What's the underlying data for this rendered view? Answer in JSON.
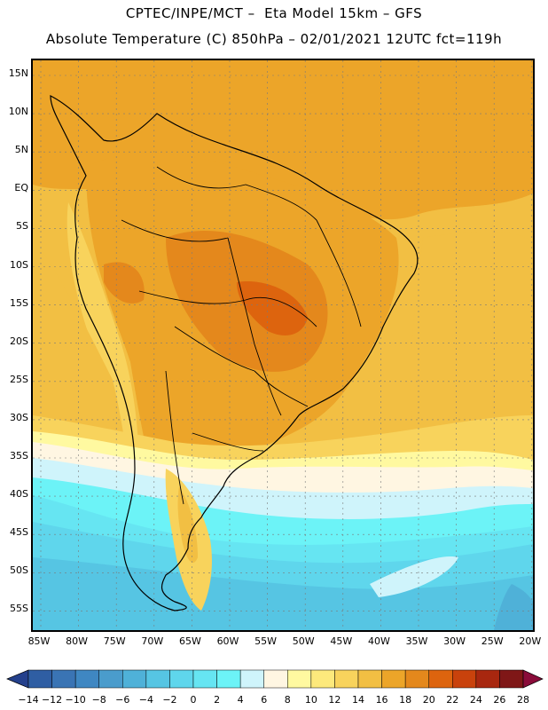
{
  "header": {
    "title_line1": "CPTEC/INPE/MCT –  Eta Model 15km – GFS",
    "title_line2": "Absolute Temperature (C) 850hPa – 02/01/2021 12UTC fct=119h"
  },
  "map": {
    "region": "South America",
    "lat_labels": [
      "15N",
      "10N",
      "5N",
      "EQ",
      "5S",
      "10S",
      "15S",
      "20S",
      "25S",
      "30S",
      "35S",
      "40S",
      "45S",
      "50S",
      "55S"
    ],
    "lon_labels": [
      "85W",
      "80W",
      "75W",
      "70W",
      "65W",
      "60W",
      "55W",
      "50W",
      "45W",
      "40W",
      "35W",
      "30W",
      "25W",
      "20W"
    ]
  },
  "colorbar": {
    "labels": [
      "-14",
      "-12",
      "-10",
      "-8",
      "-6",
      "-4",
      "-2",
      "0",
      "2",
      "4",
      "6",
      "8",
      "10",
      "12",
      "14",
      "16",
      "18",
      "20",
      "22",
      "24",
      "26",
      "28"
    ],
    "colors": [
      "#24408c",
      "#2f5ea3",
      "#3a74b4",
      "#3f87c2",
      "#4a9ccc",
      "#4fb1d8",
      "#56c5e3",
      "#5fd6ec",
      "#66e5f2",
      "#6cf3f7",
      "#cff4fb",
      "#fff6e2",
      "#fff9a0",
      "#fde97c",
      "#f8d35c",
      "#f2bf43",
      "#eca529",
      "#e4881c",
      "#dd640e",
      "#c9420c",
      "#a8270f",
      "#7f1717",
      "#8a0c3a"
    ]
  }
}
